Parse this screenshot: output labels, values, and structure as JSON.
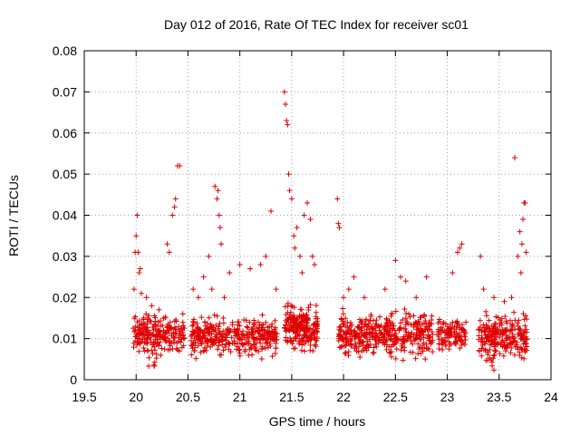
{
  "chart_data": {
    "type": "scatter",
    "title": "Day 012 of 2016, Rate Of TEC Index for receiver sc01",
    "xlabel": "GPS time / hours",
    "ylabel": "ROTI / TECUs",
    "xlim": [
      19.5,
      24
    ],
    "ylim": [
      0,
      0.08
    ],
    "x_ticks": [
      "19.5",
      "20",
      "20.5",
      "21",
      "21.5",
      "22",
      "22.5",
      "23",
      "23.5",
      "24"
    ],
    "y_ticks": [
      "0",
      "0.01",
      "0.02",
      "0.03",
      "0.04",
      "0.05",
      "0.06",
      "0.07",
      "0.08"
    ],
    "grid": true,
    "marker": "+",
    "color": "#e00000",
    "series": [
      {
        "name": "sc01",
        "points": [
          [
            19.98,
            0.022
          ],
          [
            19.99,
            0.031
          ],
          [
            20.0,
            0.035
          ],
          [
            20.01,
            0.04
          ],
          [
            20.02,
            0.031
          ],
          [
            20.03,
            0.026
          ],
          [
            20.04,
            0.027
          ],
          [
            20.05,
            0.021
          ],
          [
            20.1,
            0.02
          ],
          [
            20.15,
            0.018
          ],
          [
            20.22,
            0.017
          ],
          [
            20.3,
            0.033
          ],
          [
            20.32,
            0.031
          ],
          [
            20.35,
            0.04
          ],
          [
            20.37,
            0.042
          ],
          [
            20.38,
            0.044
          ],
          [
            20.4,
            0.052
          ],
          [
            20.42,
            0.052
          ],
          [
            20.45,
            0.016
          ],
          [
            20.55,
            0.022
          ],
          [
            20.6,
            0.02
          ],
          [
            20.65,
            0.025
          ],
          [
            20.7,
            0.03
          ],
          [
            20.73,
            0.022
          ],
          [
            20.76,
            0.047
          ],
          [
            20.78,
            0.044
          ],
          [
            20.79,
            0.046
          ],
          [
            20.8,
            0.04
          ],
          [
            20.81,
            0.037
          ],
          [
            20.82,
            0.033
          ],
          [
            20.85,
            0.02
          ],
          [
            20.9,
            0.026
          ],
          [
            21.0,
            0.028
          ],
          [
            21.1,
            0.027
          ],
          [
            21.2,
            0.028
          ],
          [
            21.25,
            0.03
          ],
          [
            21.3,
            0.041
          ],
          [
            21.35,
            0.022
          ],
          [
            21.43,
            0.07
          ],
          [
            21.44,
            0.067
          ],
          [
            21.45,
            0.063
          ],
          [
            21.46,
            0.062
          ],
          [
            21.47,
            0.05
          ],
          [
            21.48,
            0.046
          ],
          [
            21.5,
            0.044
          ],
          [
            21.52,
            0.035
          ],
          [
            21.53,
            0.032
          ],
          [
            21.55,
            0.037
          ],
          [
            21.58,
            0.03
          ],
          [
            21.6,
            0.026
          ],
          [
            21.62,
            0.04
          ],
          [
            21.65,
            0.043
          ],
          [
            21.68,
            0.039
          ],
          [
            21.7,
            0.03
          ],
          [
            21.72,
            0.028
          ],
          [
            21.94,
            0.044
          ],
          [
            21.95,
            0.038
          ],
          [
            21.96,
            0.037
          ],
          [
            22.0,
            0.02
          ],
          [
            22.05,
            0.022
          ],
          [
            22.1,
            0.025
          ],
          [
            22.2,
            0.02
          ],
          [
            22.4,
            0.022
          ],
          [
            22.5,
            0.029
          ],
          [
            22.55,
            0.025
          ],
          [
            22.6,
            0.024
          ],
          [
            22.7,
            0.02
          ],
          [
            22.8,
            0.025
          ],
          [
            23.05,
            0.026
          ],
          [
            23.1,
            0.031
          ],
          [
            23.12,
            0.032
          ],
          [
            23.14,
            0.033
          ],
          [
            23.18,
            0.014
          ],
          [
            23.32,
            0.03
          ],
          [
            23.35,
            0.022
          ],
          [
            23.45,
            0.02
          ],
          [
            23.55,
            0.019
          ],
          [
            23.62,
            0.02
          ],
          [
            23.65,
            0.054
          ],
          [
            23.68,
            0.03
          ],
          [
            23.7,
            0.036
          ],
          [
            23.71,
            0.026
          ],
          [
            23.72,
            0.033
          ],
          [
            23.73,
            0.039
          ],
          [
            23.74,
            0.043
          ],
          [
            23.75,
            0.043
          ],
          [
            23.76,
            0.031
          ]
        ],
        "clusters": [
          {
            "x_range": [
              19.97,
              20.47
            ],
            "y_range": [
              0.005,
              0.017
            ],
            "count": 220,
            "dip": [
              20.12,
              20.2,
              0.003
            ]
          },
          {
            "x_range": [
              20.53,
              21.36
            ],
            "y_range": [
              0.004,
              0.017
            ],
            "count": 360,
            "dip": null
          },
          {
            "x_range": [
              21.43,
              21.75
            ],
            "y_range": [
              0.005,
              0.02
            ],
            "count": 220,
            "dip": null
          },
          {
            "x_range": [
              21.95,
              22.86
            ],
            "y_range": [
              0.004,
              0.018
            ],
            "count": 420,
            "dip": null
          },
          {
            "x_range": [
              22.91,
              23.18
            ],
            "y_range": [
              0.006,
              0.016
            ],
            "count": 110,
            "dip": null
          },
          {
            "x_range": [
              23.3,
              23.77
            ],
            "y_range": [
              0.003,
              0.018
            ],
            "count": 240,
            "dip": [
              23.4,
              23.45,
              0.002
            ]
          }
        ]
      }
    ]
  }
}
